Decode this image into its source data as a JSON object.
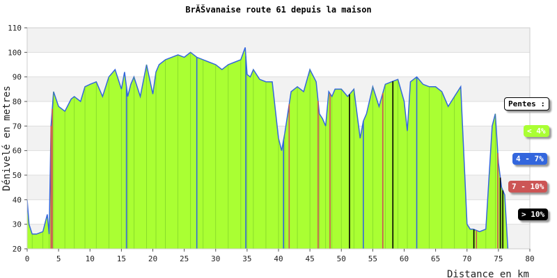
{
  "chart_data": {
    "type": "area",
    "title": "BrĂŠvanaise route 61 depuis la maison",
    "xlabel": "Distance en km",
    "ylabel": "Dénivelé en metres",
    "xlim": [
      0,
      80
    ],
    "ylim": [
      20,
      110
    ],
    "x_ticks": [
      0,
      5,
      10,
      15,
      20,
      25,
      30,
      35,
      40,
      45,
      50,
      55,
      60,
      65,
      70,
      75,
      80
    ],
    "y_ticks": [
      20,
      30,
      40,
      50,
      60,
      70,
      80,
      90,
      100,
      110
    ],
    "grid": "horizontal-bands",
    "legend": {
      "title": "Pentes :",
      "items": [
        {
          "label": "< 4%",
          "color": "#aaff33",
          "text_color": "#ffffff"
        },
        {
          "label": "4 - 7%",
          "color": "#3366dd",
          "text_color": "#ffffff"
        },
        {
          "label": "7 - 10%",
          "color": "#cc5555",
          "text_color": "#ffffff"
        },
        {
          "label": "> 10%",
          "color": "#000000",
          "text_color": "#ffffff"
        }
      ]
    },
    "profile": {
      "x": [
        0,
        0.3,
        0.8,
        1.5,
        2.5,
        3.2,
        3.5,
        3.8,
        4.2,
        5,
        6,
        7,
        7.5,
        8.5,
        9.2,
        10,
        11,
        12,
        13,
        14,
        15,
        15.5,
        16,
        16.5,
        17,
        18,
        19,
        20,
        20.5,
        21,
        22,
        23,
        24,
        25,
        26,
        27,
        28,
        29,
        30,
        31,
        32,
        33,
        34,
        34.7,
        35,
        35.5,
        36,
        37,
        38,
        39,
        40,
        40.5,
        41,
        42,
        43,
        44,
        45,
        46,
        46.5,
        47,
        47.5,
        48,
        48.5,
        49,
        50,
        51,
        52,
        53,
        53.5,
        54,
        55,
        56,
        57,
        58,
        59,
        60,
        60.5,
        61,
        62,
        63,
        64,
        65,
        66,
        67,
        68,
        69,
        70,
        70.5,
        71,
        72,
        73,
        74,
        74.5,
        75,
        75.5,
        76,
        76.5
      ],
      "y": [
        40,
        30,
        26,
        26,
        27,
        34,
        26,
        70,
        84,
        78,
        76,
        81,
        82,
        80,
        86,
        87,
        88,
        82,
        90,
        93,
        85,
        92,
        82,
        87,
        90,
        82,
        95,
        83,
        92,
        95,
        97,
        98,
        99,
        98,
        100,
        98,
        97,
        96,
        95,
        93,
        95,
        96,
        97,
        102,
        91,
        90,
        93,
        89,
        88,
        88,
        65,
        60,
        67,
        84,
        86,
        84,
        93,
        88,
        75,
        73,
        70,
        84,
        82,
        85,
        85,
        82,
        85,
        65,
        72,
        75,
        86,
        78,
        87,
        88,
        89,
        80,
        68,
        88,
        90,
        87,
        86,
        86,
        84,
        78,
        82,
        86,
        30,
        28,
        28,
        27,
        28,
        70,
        75,
        55,
        45,
        42,
        20
      ]
    },
    "steep_segments": [
      {
        "x": 3.8,
        "class": "7 - 10%"
      },
      {
        "x": 4.0,
        "class": "7 - 10%"
      },
      {
        "x": 15.8,
        "class": "4 - 7%"
      },
      {
        "x": 27.0,
        "class": "4 - 7%"
      },
      {
        "x": 34.8,
        "class": "4 - 7%"
      },
      {
        "x": 40.8,
        "class": "4 - 7%"
      },
      {
        "x": 41.7,
        "class": "7 - 10%"
      },
      {
        "x": 46.3,
        "class": "7 - 10%"
      },
      {
        "x": 48.2,
        "class": "7 - 10%"
      },
      {
        "x": 51.3,
        "class": "> 10%"
      },
      {
        "x": 53.5,
        "class": "4 - 7%"
      },
      {
        "x": 56.6,
        "class": "7 - 10%"
      },
      {
        "x": 58.2,
        "class": "> 10%"
      },
      {
        "x": 62.0,
        "class": "4 - 7%"
      },
      {
        "x": 71.1,
        "class": "> 10%"
      },
      {
        "x": 71.5,
        "class": "7 - 10%"
      },
      {
        "x": 74.9,
        "class": "7 - 10%"
      },
      {
        "x": 75.3,
        "class": "> 10%"
      },
      {
        "x": 75.7,
        "class": "> 10%"
      }
    ]
  }
}
